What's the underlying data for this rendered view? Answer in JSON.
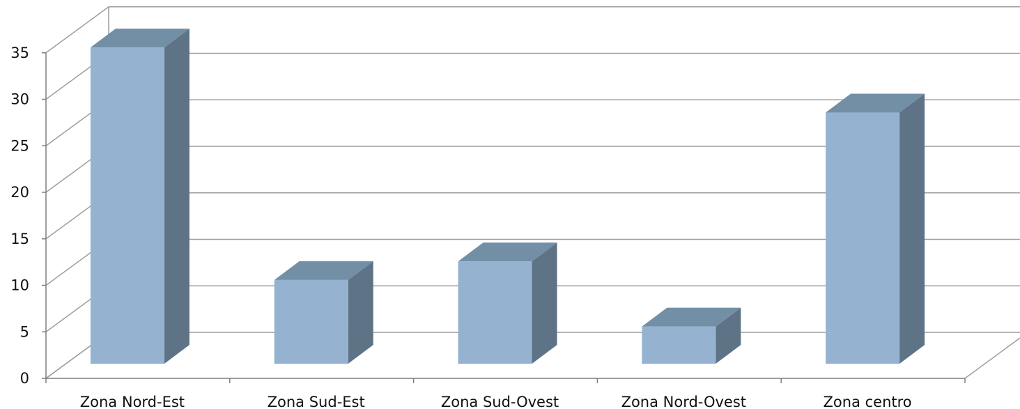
{
  "chart_data": {
    "type": "bar",
    "categories": [
      "Zona Nord-Est",
      "Zona Sud-Est",
      "Zona Sud-Ovest",
      "Zona Nord-Ovest",
      "Zona centro"
    ],
    "series": [
      {
        "values": [
          34,
          9,
          11,
          4,
          27
        ]
      }
    ],
    "ylim": [
      0,
      35
    ],
    "yticks": [
      "0",
      "5",
      "10",
      "15",
      "20",
      "25",
      "30",
      "35"
    ],
    "grid": true,
    "legend": "none",
    "style": "3d-column",
    "colors": {
      "bar_front": "#95B3D1",
      "bar_top": "#728FA6",
      "bar_side": "#5E7386",
      "grid": "#9E9E9E",
      "axis": "#7F7F7F"
    }
  }
}
